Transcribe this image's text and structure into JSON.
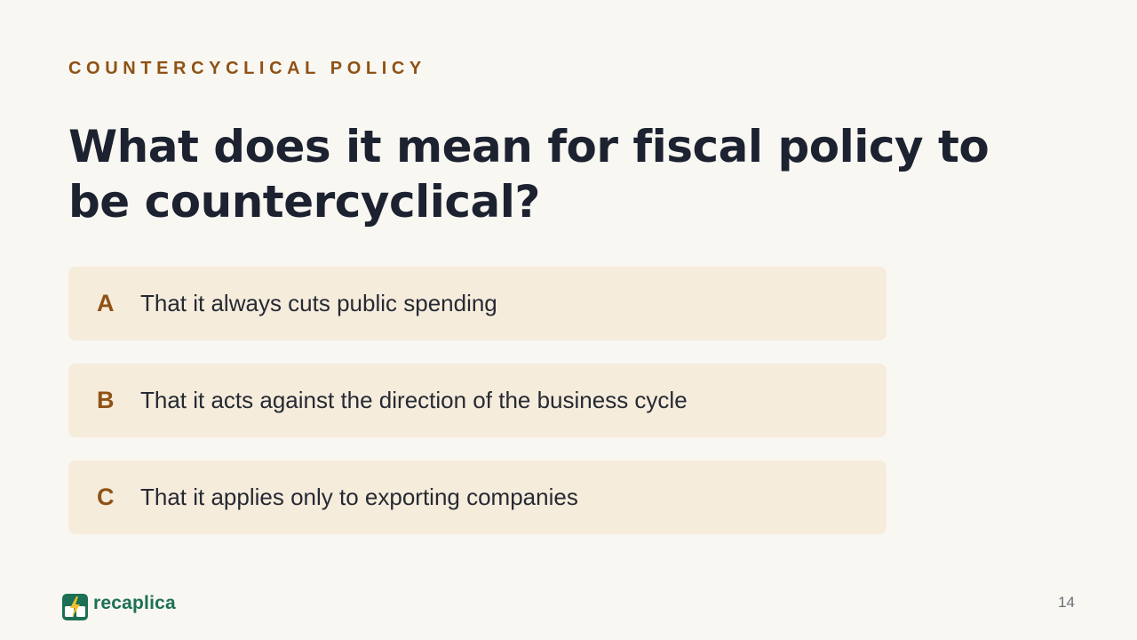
{
  "slide": {
    "eyebrow": "COUNTERCYCLICAL POLICY",
    "question": "What does it mean for fiscal policy to be countercyclical?",
    "options": [
      {
        "letter": "A",
        "text": "That it always cuts public spending"
      },
      {
        "letter": "B",
        "text": "That it acts against the direction of the business cycle"
      },
      {
        "letter": "C",
        "text": "That it applies only to exporting companies"
      }
    ]
  },
  "footer": {
    "brand": "recaplica",
    "logo_icon": "lightning-bolt-icon",
    "page_number": "14"
  },
  "colors": {
    "background": "#f9f7f2",
    "accent": "#8e5216",
    "option_background": "#f6ecdc",
    "heading": "#1c2230",
    "brand": "#1c7055"
  }
}
